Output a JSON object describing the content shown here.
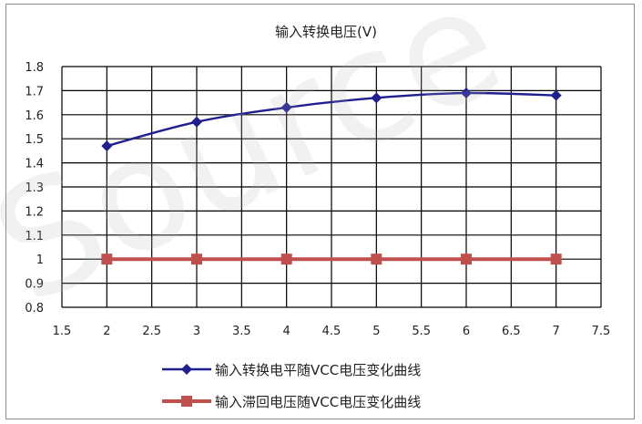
{
  "chart_data": {
    "type": "line",
    "title": "输入转换电压(V)",
    "xlabel": "",
    "ylabel": "",
    "x_ticks": [
      "1.5",
      "2",
      "2.5",
      "3",
      "3.5",
      "4",
      "4.5",
      "5",
      "5.5",
      "6",
      "6.5",
      "7",
      "7.5"
    ],
    "y_ticks": [
      "0.8",
      "0.9",
      "1",
      "1.1",
      "1.2",
      "1.3",
      "1.4",
      "1.5",
      "1.6",
      "1.7",
      "1.8"
    ],
    "xlim": [
      1.5,
      7.5
    ],
    "ylim": [
      0.8,
      1.8
    ],
    "grid": true,
    "legend_position": "bottom",
    "series": [
      {
        "name": "输入转换电平随VCC电压变化曲线",
        "color": "#1f1f8f",
        "marker": "diamond",
        "x": [
          2,
          3,
          4,
          5,
          6,
          7
        ],
        "y": [
          1.47,
          1.57,
          1.63,
          1.67,
          1.69,
          1.68
        ]
      },
      {
        "name": "输入滞回电压随VCC电压变化曲线",
        "color": "#c0504d",
        "marker": "square",
        "x": [
          2,
          3,
          4,
          5,
          6,
          7
        ],
        "y": [
          1.0,
          1.0,
          1.0,
          1.0,
          1.0,
          1.0
        ]
      }
    ]
  },
  "watermark": "Source"
}
